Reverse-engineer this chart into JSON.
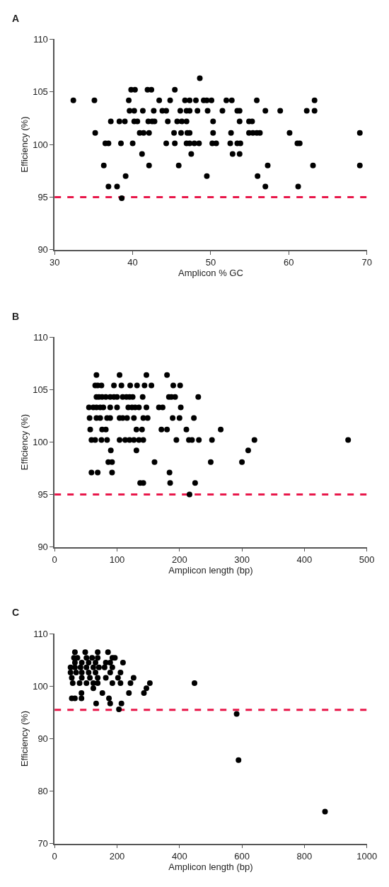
{
  "chart_data": [
    {
      "type": "scatter",
      "title": "A",
      "xlabel": "Amplicon % GC",
      "ylabel": "Efficiency (%)",
      "xlim": [
        30,
        70
      ],
      "xticks": [
        30,
        40,
        50,
        60,
        70
      ],
      "ylim": [
        90,
        110
      ],
      "yticks": [
        90,
        95,
        100,
        105,
        110
      ],
      "grid": false,
      "marker": "circle",
      "series": [
        {
          "color": "#000000",
          "x": [
            48.6,
            39.8,
            40.3,
            41.9,
            42.4,
            45.4,
            32.4,
            35.1,
            39.5,
            43.4,
            44.8,
            46.7,
            47.3,
            48.1,
            49.1,
            49.5,
            50.1,
            52.0,
            52.7,
            55.9,
            63.3,
            39.6,
            40.2,
            41.3,
            42.7,
            43.8,
            44.3,
            46.1,
            46.9,
            47.3,
            48.3,
            49.6,
            51.5,
            53.4,
            53.7,
            57.0,
            58.9,
            62.3,
            63.3,
            37.2,
            38.3,
            39.0,
            40.2,
            40.6,
            42.0,
            42.5,
            42.8,
            44.5,
            45.7,
            46.3,
            46.9,
            50.3,
            53.7,
            54.9,
            55.3,
            35.2,
            40.9,
            41.4,
            42.1,
            45.3,
            46.2,
            47.0,
            47.3,
            50.3,
            52.6,
            54.9,
            55.4,
            55.9,
            56.3,
            60.1,
            69.1,
            36.5,
            36.9,
            38.5,
            40.0,
            44.3,
            45.4,
            46.9,
            47.3,
            47.9,
            48.5,
            50.2,
            50.7,
            52.5,
            53.4,
            53.8,
            61.1,
            61.4,
            41.2,
            47.5,
            52.8,
            53.7,
            36.3,
            42.1,
            45.9,
            57.3,
            63.1,
            69.1,
            39.1,
            49.5,
            56.0,
            36.9,
            38.0,
            57.0,
            61.2,
            38.6
          ],
          "values": [
            106.3,
            105.2,
            105.2,
            105.2,
            105.2,
            105.2,
            104.2,
            104.2,
            104.2,
            104.2,
            104.2,
            104.2,
            104.2,
            104.2,
            104.2,
            104.2,
            104.2,
            104.2,
            104.2,
            104.2,
            104.2,
            103.2,
            103.2,
            103.2,
            103.2,
            103.2,
            103.2,
            103.2,
            103.2,
            103.2,
            103.2,
            103.2,
            103.2,
            103.2,
            103.2,
            103.2,
            103.2,
            103.2,
            103.2,
            102.2,
            102.2,
            102.2,
            102.2,
            102.2,
            102.2,
            102.2,
            102.2,
            102.2,
            102.2,
            102.2,
            102.2,
            102.2,
            102.2,
            102.2,
            102.2,
            101.1,
            101.1,
            101.1,
            101.1,
            101.1,
            101.1,
            101.1,
            101.1,
            101.1,
            101.1,
            101.1,
            101.1,
            101.1,
            101.1,
            101.1,
            101.1,
            100.1,
            100.1,
            100.1,
            100.1,
            100.1,
            100.1,
            100.1,
            100.1,
            100.1,
            100.1,
            100.1,
            100.1,
            100.1,
            100.1,
            100.1,
            100.1,
            100.1,
            99.1,
            99.1,
            99.1,
            99.1,
            98.0,
            98.0,
            98.0,
            98.0,
            98.0,
            98.0,
            97.0,
            97.0,
            97.0,
            96.0,
            96.0,
            96.0,
            96.0,
            94.9
          ]
        }
      ],
      "ref_lines": [
        {
          "axis": "y",
          "value": 95,
          "color": "#e8174a",
          "line_style": "dashed"
        }
      ]
    },
    {
      "type": "scatter",
      "title": "B",
      "xlabel": "Amplicon length (bp)",
      "ylabel": "Efficiency (%)",
      "xlim": [
        0,
        500
      ],
      "xticks": [
        0,
        100,
        200,
        300,
        400,
        500
      ],
      "ylim": [
        90,
        110
      ],
      "yticks": [
        90,
        95,
        100,
        105,
        110
      ],
      "grid": false,
      "marker": "circle",
      "series": [
        {
          "color": "#000000",
          "x": [
            67,
            104,
            147,
            180,
            65,
            69,
            75,
            95,
            107,
            121,
            132,
            144,
            155,
            190,
            201,
            67,
            71,
            76,
            82,
            89,
            95,
            100,
            109,
            115,
            120,
            125,
            141,
            183,
            187,
            193,
            230,
            55,
            62,
            67,
            73,
            78,
            89,
            100,
            118,
            124,
            129,
            135,
            147,
            167,
            173,
            202,
            56,
            67,
            73,
            84,
            89,
            104,
            109,
            116,
            127,
            142,
            149,
            189,
            200,
            223,
            57,
            76,
            82,
            131,
            140,
            171,
            180,
            211,
            266,
            59,
            65,
            75,
            84,
            104,
            113,
            120,
            127,
            135,
            142,
            195,
            215,
            220,
            231,
            252,
            320,
            470,
            90,
            131,
            310,
            86,
            92,
            160,
            250,
            300,
            59,
            69,
            92,
            184,
            137,
            142,
            185,
            225,
            216
          ],
          "values": [
            106.4,
            106.4,
            106.4,
            106.4,
            105.4,
            105.4,
            105.4,
            105.4,
            105.4,
            105.4,
            105.4,
            105.4,
            105.4,
            105.4,
            105.4,
            104.3,
            104.3,
            104.3,
            104.3,
            104.3,
            104.3,
            104.3,
            104.3,
            104.3,
            104.3,
            104.3,
            104.3,
            104.3,
            104.3,
            104.3,
            104.3,
            103.3,
            103.3,
            103.3,
            103.3,
            103.3,
            103.3,
            103.3,
            103.3,
            103.3,
            103.3,
            103.3,
            103.3,
            103.3,
            103.3,
            103.3,
            102.3,
            102.3,
            102.3,
            102.3,
            102.3,
            102.3,
            102.3,
            102.3,
            102.3,
            102.3,
            102.3,
            102.3,
            102.3,
            102.3,
            101.2,
            101.2,
            101.2,
            101.2,
            101.2,
            101.2,
            101.2,
            101.2,
            101.2,
            100.2,
            100.2,
            100.2,
            100.2,
            100.2,
            100.2,
            100.2,
            100.2,
            100.2,
            100.2,
            100.2,
            100.2,
            100.2,
            100.2,
            100.2,
            100.2,
            100.2,
            99.2,
            99.2,
            99.2,
            98.1,
            98.1,
            98.1,
            98.1,
            98.1,
            97.1,
            97.1,
            97.1,
            97.1,
            96.1,
            96.1,
            96.1,
            96.1,
            95.0
          ]
        }
      ],
      "ref_lines": [
        {
          "axis": "y",
          "value": 95,
          "color": "#e8174a",
          "line_style": "dashed"
        }
      ]
    },
    {
      "type": "scatter",
      "title": "C",
      "xlabel": "Amplicon length (bp)",
      "ylabel": "Efficiency (%)",
      "xlim": [
        0,
        1000
      ],
      "xticks": [
        0,
        200,
        400,
        600,
        800,
        1000
      ],
      "ylim": [
        70,
        110
      ],
      "yticks": [
        70,
        80,
        90,
        100,
        110
      ],
      "grid": false,
      "marker": "circle",
      "series": [
        {
          "color": "#000000",
          "x": [
            65,
            98,
            138,
            171,
            62,
            73,
            102,
            120,
            138,
            185,
            193,
            65,
            87,
            109,
            131,
            164,
            178,
            219,
            51,
            65,
            83,
            102,
            124,
            142,
            160,
            185,
            51,
            69,
            87,
            109,
            131,
            178,
            211,
            55,
            87,
            113,
            138,
            164,
            203,
            253,
            58,
            80,
            102,
            124,
            138,
            185,
            211,
            243,
            305,
            124,
            294,
            86,
            153,
            238,
            286,
            55,
            65,
            86,
            174,
            133,
            178,
            214,
            206,
            448,
            583,
            589,
            866
          ],
          "values": [
            106.5,
            106.5,
            106.5,
            106.5,
            105.4,
            105.4,
            105.4,
            105.4,
            105.4,
            105.4,
            105.4,
            104.5,
            104.5,
            104.5,
            104.5,
            104.5,
            104.5,
            104.5,
            103.6,
            103.6,
            103.6,
            103.6,
            103.6,
            103.6,
            103.6,
            103.6,
            102.6,
            102.6,
            102.6,
            102.6,
            102.6,
            102.6,
            102.6,
            101.6,
            101.6,
            101.6,
            101.6,
            101.6,
            101.6,
            101.6,
            100.6,
            100.6,
            100.6,
            100.6,
            100.6,
            100.6,
            100.6,
            100.6,
            100.6,
            99.6,
            99.6,
            98.7,
            98.7,
            98.7,
            98.7,
            97.7,
            97.7,
            97.7,
            97.7,
            96.7,
            96.7,
            96.7,
            95.6,
            100.6,
            94.7,
            85.9,
            76.1
          ]
        }
      ],
      "ref_lines": [
        {
          "axis": "y",
          "value": 95.5,
          "color": "#e8174a",
          "line_style": "dashed"
        }
      ]
    }
  ]
}
